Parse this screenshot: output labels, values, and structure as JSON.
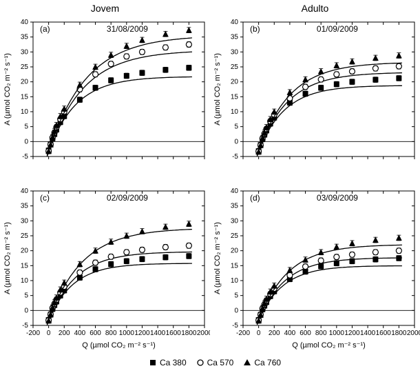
{
  "columns": {
    "left": "Jovem",
    "right": "Adulto"
  },
  "legend": {
    "items": [
      {
        "label": "Ca 380",
        "marker": "filled-square",
        "color": "#000000"
      },
      {
        "label": "Ca 570",
        "marker": "open-circle",
        "color": "#000000"
      },
      {
        "label": "Ca 760",
        "marker": "filled-triangle",
        "color": "#000000"
      }
    ]
  },
  "axes": {
    "x": {
      "label": "Q (µmol CO₂ m⁻² s⁻¹)",
      "min": -200,
      "max": 2000,
      "ticks": [
        -200,
        0,
        200,
        400,
        600,
        800,
        1000,
        1200,
        1400,
        1600,
        1800,
        2000
      ]
    },
    "y": {
      "label": "A (µmol CO₂ m⁻² s⁻¹)",
      "min": -5,
      "max": 40,
      "ticks": [
        -5,
        0,
        5,
        10,
        15,
        20,
        25,
        30,
        35,
        40
      ]
    }
  },
  "style": {
    "background_color": "#ffffff",
    "axis_color": "#000000",
    "tick_fontsize": 10,
    "label_fontsize": 11,
    "title_fontsize": 12,
    "line_color": "#000000",
    "line_width": 1.3,
    "marker_size": 4,
    "errorbar_halfwidth": 3,
    "errorbar_value": 0.9
  },
  "panels": [
    {
      "id": "a",
      "tag": "(a)",
      "title": "31/08/2009",
      "series": {
        "ca380": {
          "x": [
            0,
            25,
            50,
            75,
            100,
            150,
            200,
            400,
            600,
            800,
            1000,
            1200,
            1500,
            1800
          ],
          "y": [
            -3.0,
            -1.0,
            1.0,
            2.5,
            4.0,
            6.5,
            8.5,
            14.0,
            18.0,
            20.5,
            22.0,
            23.0,
            24.0,
            24.7
          ],
          "Amax": 25,
          "alpha": 0.07,
          "Rd": 3.2
        },
        "ca570": {
          "x": [
            0,
            25,
            50,
            75,
            100,
            150,
            200,
            400,
            600,
            800,
            1000,
            1200,
            1500,
            1800
          ],
          "y": [
            -3.2,
            -1.0,
            1.3,
            3.0,
            4.8,
            7.5,
            10.0,
            17.5,
            22.5,
            26.0,
            28.5,
            30.0,
            31.5,
            32.5
          ],
          "Amax": 34,
          "alpha": 0.075,
          "Rd": 3.4
        },
        "ca760": {
          "x": [
            0,
            25,
            50,
            75,
            100,
            150,
            200,
            400,
            600,
            800,
            1000,
            1200,
            1500,
            1800
          ],
          "y": [
            -3.2,
            -1.0,
            1.5,
            3.5,
            5.5,
            8.5,
            11.0,
            19.0,
            25.0,
            29.0,
            32.0,
            34.0,
            36.0,
            37.3
          ],
          "Amax": 39,
          "alpha": 0.08,
          "Rd": 3.4
        }
      }
    },
    {
      "id": "b",
      "tag": "(b)",
      "title": "01/09/2009",
      "series": {
        "ca380": {
          "x": [
            0,
            25,
            50,
            75,
            100,
            150,
            200,
            400,
            600,
            800,
            1000,
            1200,
            1500,
            1800
          ],
          "y": [
            -3.2,
            -1.2,
            0.8,
            2.3,
            3.7,
            6.0,
            8.0,
            13.0,
            16.0,
            18.0,
            19.2,
            20.0,
            20.7,
            21.2
          ],
          "Amax": 22,
          "alpha": 0.065,
          "Rd": 3.2
        },
        "ca570": {
          "x": [
            0,
            25,
            50,
            75,
            100,
            150,
            200,
            400,
            600,
            800,
            1000,
            1200,
            1500,
            1800
          ],
          "y": [
            -3.3,
            -1.2,
            1.0,
            2.6,
            4.2,
            6.8,
            9.0,
            14.5,
            18.3,
            20.8,
            22.5,
            23.5,
            24.5,
            25.2
          ],
          "Amax": 26.5,
          "alpha": 0.07,
          "Rd": 3.3
        },
        "ca760": {
          "x": [
            0,
            25,
            50,
            75,
            100,
            150,
            200,
            400,
            600,
            800,
            1000,
            1200,
            1500,
            1800
          ],
          "y": [
            -3.4,
            -1.2,
            1.2,
            3.0,
            4.8,
            7.5,
            10.0,
            16.5,
            20.8,
            23.5,
            25.5,
            26.8,
            28.0,
            28.8
          ],
          "Amax": 30,
          "alpha": 0.075,
          "Rd": 3.4
        }
      }
    },
    {
      "id": "c",
      "tag": "(c)",
      "title": "02/09/2009",
      "series": {
        "ca380": {
          "x": [
            0,
            25,
            50,
            75,
            100,
            150,
            200,
            400,
            600,
            800,
            1000,
            1200,
            1500,
            1800
          ],
          "y": [
            -3.2,
            -1.4,
            0.5,
            1.8,
            3.0,
            5.0,
            6.7,
            11.0,
            13.8,
            15.5,
            16.5,
            17.2,
            17.8,
            18.2
          ],
          "Amax": 19,
          "alpha": 0.06,
          "Rd": 3.2
        },
        "ca570": {
          "x": [
            0,
            25,
            50,
            75,
            100,
            150,
            200,
            400,
            600,
            800,
            1000,
            1200,
            1500,
            1800
          ],
          "y": [
            -3.3,
            -1.3,
            0.8,
            2.2,
            3.6,
            6.0,
            8.0,
            12.7,
            16.0,
            18.0,
            19.5,
            20.3,
            21.2,
            21.7
          ],
          "Amax": 23,
          "alpha": 0.065,
          "Rd": 3.3
        },
        "ca760": {
          "x": [
            0,
            25,
            50,
            75,
            100,
            150,
            200,
            400,
            600,
            800,
            1000,
            1200,
            1500,
            1800
          ],
          "y": [
            -3.4,
            -1.3,
            1.0,
            2.7,
            4.3,
            7.0,
            9.3,
            15.5,
            20.0,
            23.0,
            25.0,
            26.5,
            28.0,
            29.0
          ],
          "Amax": 31,
          "alpha": 0.072,
          "Rd": 3.4
        }
      }
    },
    {
      "id": "d",
      "tag": "(d)",
      "title": "03/09/2009",
      "series": {
        "ca380": {
          "x": [
            0,
            25,
            50,
            75,
            100,
            150,
            200,
            400,
            600,
            800,
            1000,
            1200,
            1500,
            1800
          ],
          "y": [
            -3.2,
            -1.5,
            0.4,
            1.6,
            2.8,
            4.8,
            6.4,
            10.5,
            13.0,
            14.8,
            15.8,
            16.5,
            17.1,
            17.5
          ],
          "Amax": 18.2,
          "alpha": 0.058,
          "Rd": 3.2
        },
        "ca570": {
          "x": [
            0,
            25,
            50,
            75,
            100,
            150,
            200,
            400,
            600,
            800,
            1000,
            1200,
            1500,
            1800
          ],
          "y": [
            -3.3,
            -1.4,
            0.6,
            2.0,
            3.3,
            5.5,
            7.3,
            11.8,
            14.7,
            16.7,
            17.9,
            18.7,
            19.5,
            20.0
          ],
          "Amax": 21,
          "alpha": 0.062,
          "Rd": 3.3
        },
        "ca760": {
          "x": [
            0,
            25,
            50,
            75,
            100,
            150,
            200,
            400,
            600,
            800,
            1000,
            1200,
            1500,
            1800
          ],
          "y": [
            -3.4,
            -1.4,
            0.8,
            2.4,
            3.9,
            6.3,
            8.3,
            13.5,
            17.0,
            19.5,
            21.3,
            22.5,
            23.6,
            24.3
          ],
          "Amax": 25.5,
          "alpha": 0.068,
          "Rd": 3.4
        }
      }
    }
  ]
}
